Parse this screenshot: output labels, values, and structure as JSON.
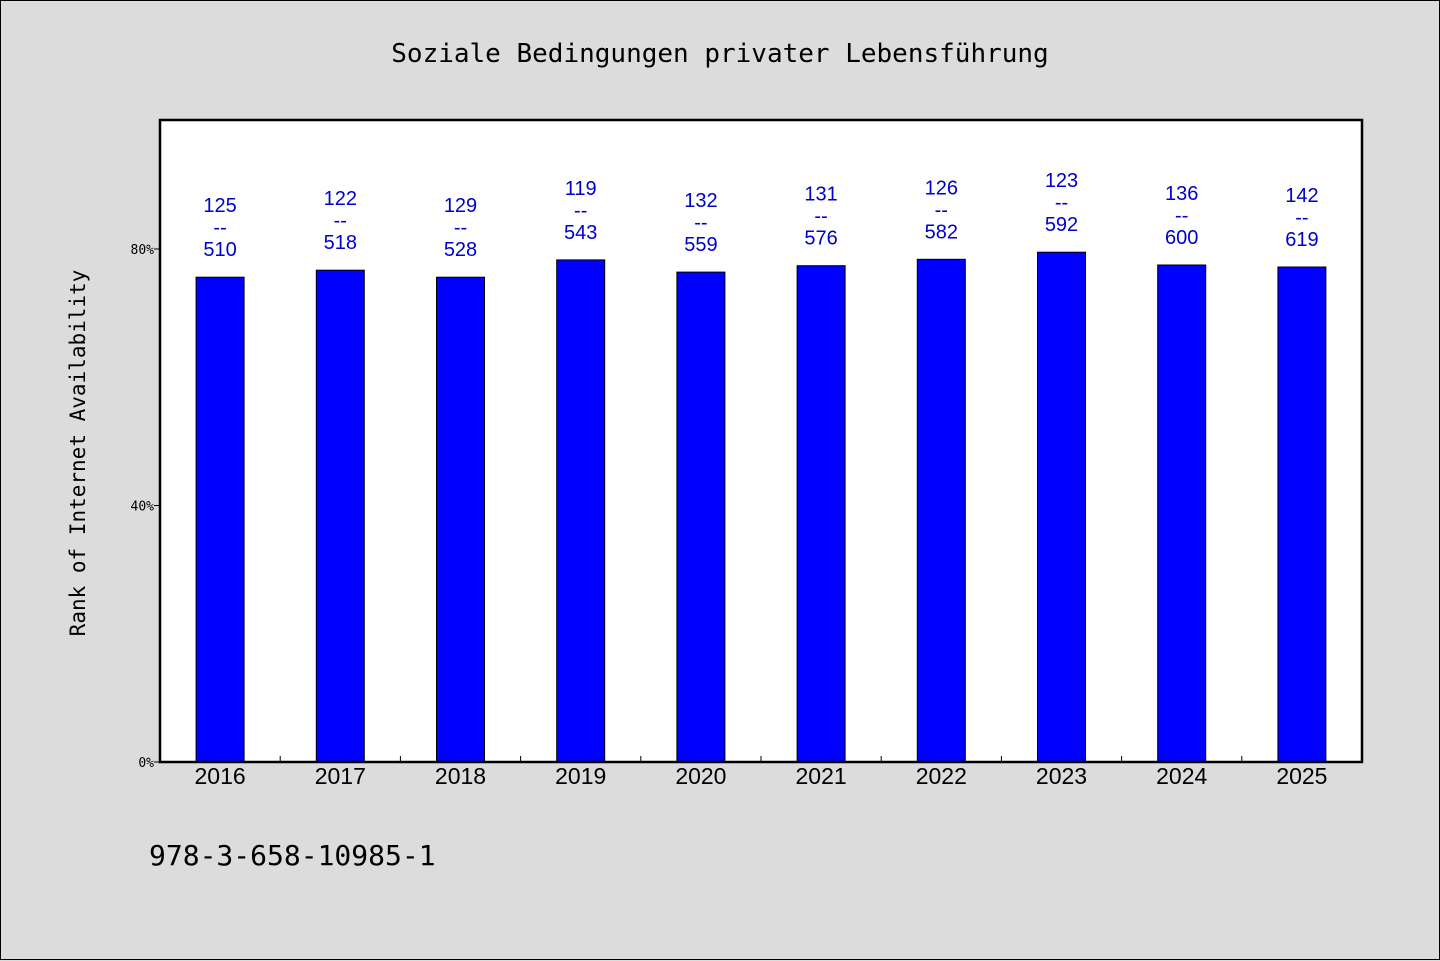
{
  "footer_text": "978-3-658-10985-1",
  "colors": {
    "background": "#dcdcdc",
    "plot_background": "#ffffff",
    "bar": "#0000ff",
    "label": "#0000cc"
  },
  "chart_data": {
    "type": "bar",
    "title": "Soziale Bedingungen privater Lebensführung",
    "xlabel": "",
    "ylabel": "Rank of Internet Availability",
    "categories": [
      "2016",
      "2017",
      "2018",
      "2019",
      "2020",
      "2021",
      "2022",
      "2023",
      "2024",
      "2025"
    ],
    "values": [
      75.6,
      76.7,
      75.6,
      78.3,
      76.4,
      77.4,
      78.4,
      79.5,
      77.5,
      77.2
    ],
    "data_labels": [
      [
        "125",
        "--",
        "510"
      ],
      [
        "122",
        "--",
        "518"
      ],
      [
        "129",
        "--",
        "528"
      ],
      [
        "119",
        "--",
        "543"
      ],
      [
        "132",
        "--",
        "559"
      ],
      [
        "131",
        "--",
        "576"
      ],
      [
        "126",
        "--",
        "582"
      ],
      [
        "123",
        "--",
        "592"
      ],
      [
        "136",
        "--",
        "600"
      ],
      [
        "142",
        "--",
        "619"
      ]
    ],
    "yticks": [
      "0%",
      "40%",
      "80%"
    ],
    "ytick_values": [
      0,
      40,
      80
    ],
    "ylim": [
      0,
      100
    ],
    "grid": false,
    "legend": "none"
  }
}
